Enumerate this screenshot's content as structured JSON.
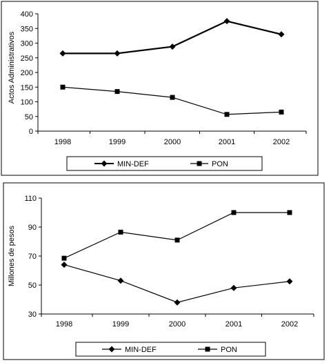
{
  "chart_data": [
    {
      "type": "line",
      "title": "",
      "xlabel": "",
      "ylabel": "Actos Administrativos",
      "categories": [
        "1998",
        "1999",
        "2000",
        "2001",
        "2002"
      ],
      "ylim": [
        0,
        400
      ],
      "yticks": [
        0,
        50,
        100,
        150,
        200,
        250,
        300,
        350,
        400
      ],
      "grid": false,
      "legend_position": "bottom",
      "series": [
        {
          "name": "MIN-DEF",
          "marker": "diamond",
          "line": "thick",
          "values": [
            265,
            265,
            288,
            375,
            330
          ]
        },
        {
          "name": "PON",
          "marker": "square",
          "line": "thin",
          "values": [
            150,
            135,
            115,
            57,
            65
          ]
        }
      ]
    },
    {
      "type": "line",
      "title": "",
      "xlabel": "",
      "ylabel": "Millones de pesos",
      "categories": [
        "1998",
        "1999",
        "2000",
        "2001",
        "2002"
      ],
      "ylim": [
        30,
        110
      ],
      "yticks": [
        30,
        50,
        70,
        90,
        110
      ],
      "grid": false,
      "legend_position": "bottom",
      "series": [
        {
          "name": "MIN-DEF",
          "marker": "diamond",
          "line": "thin",
          "values": [
            64,
            53,
            38,
            48,
            52.5
          ]
        },
        {
          "name": "PON",
          "marker": "square",
          "line": "thin",
          "values": [
            68.5,
            86.5,
            81,
            100,
            100
          ]
        }
      ]
    }
  ]
}
